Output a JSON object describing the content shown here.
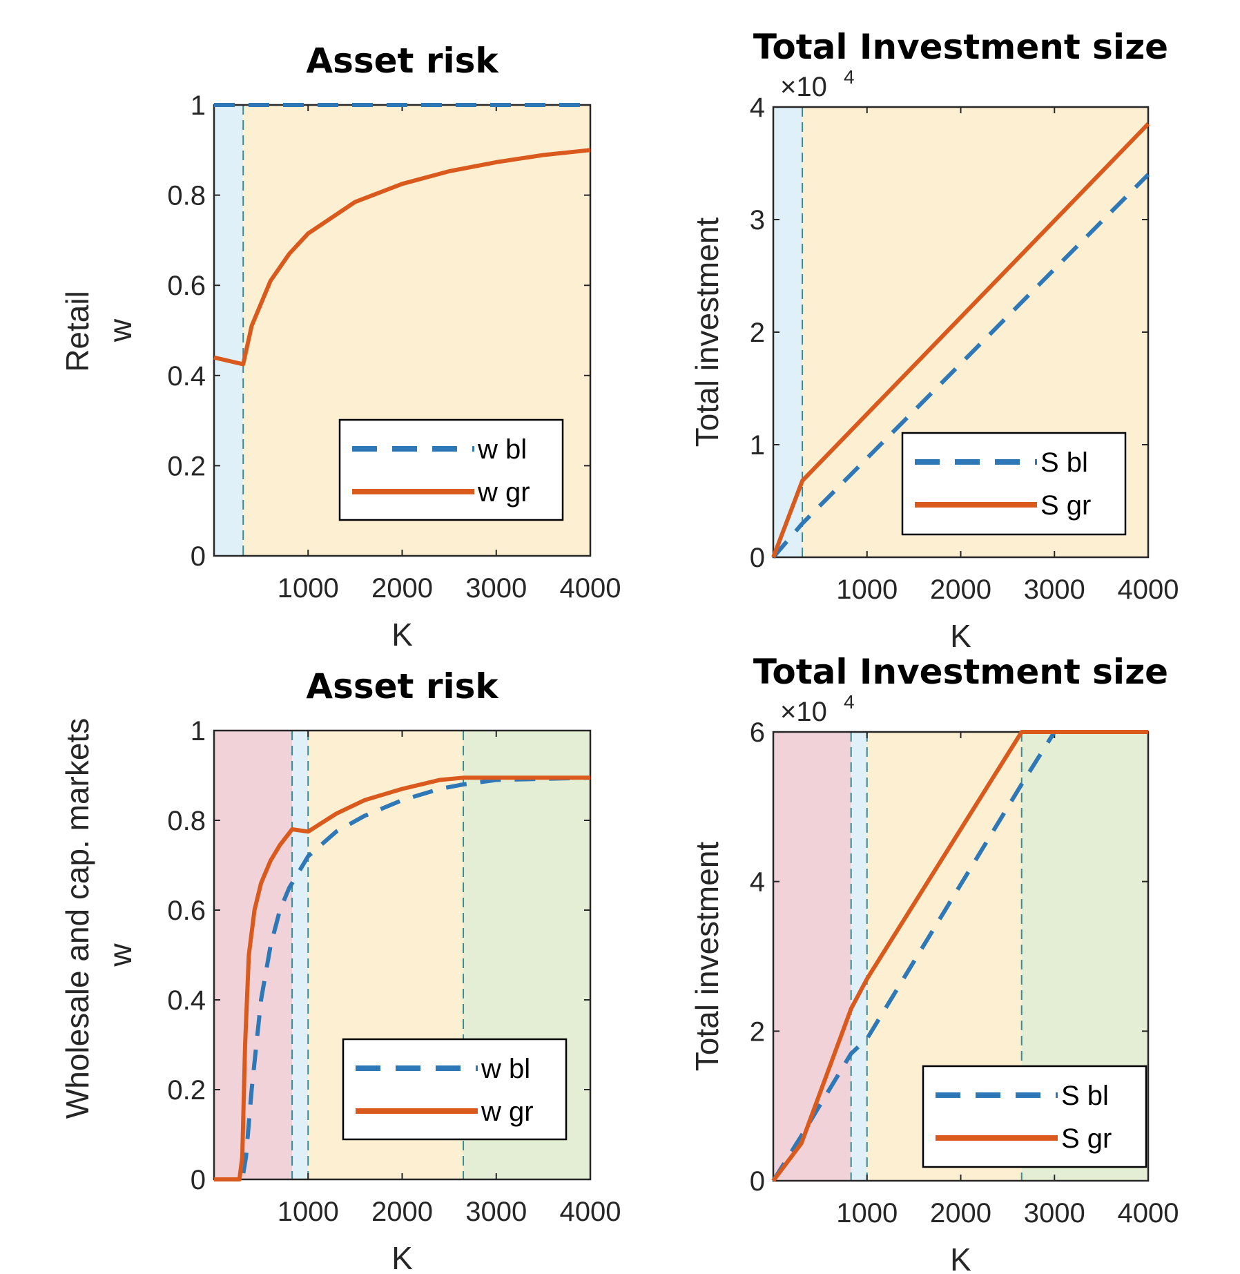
{
  "row_labels": [
    "Retail",
    "Wholesale and cap. markets"
  ],
  "chart_data": [
    {
      "type": "line",
      "title": "Asset risk",
      "xlabel": "K",
      "ylabel": "w",
      "xlim": [
        0,
        4000
      ],
      "ylim": [
        0,
        1
      ],
      "xticks": [
        1000,
        2000,
        3000,
        4000
      ],
      "xtick_labels": [
        "1000",
        "2000",
        "3000",
        "4000"
      ],
      "yticks": [
        0,
        0.2,
        0.4,
        0.6,
        0.8,
        1
      ],
      "ytick_labels": [
        "0",
        "0.2",
        "0.4",
        "0.6",
        "0.8",
        "1"
      ],
      "exponent": "",
      "regions": [
        {
          "from": 0,
          "to": 310,
          "color": "#dff0f8"
        },
        {
          "from": 310,
          "to": 4000,
          "color": "#fcefd2"
        }
      ],
      "vlines": [
        310
      ],
      "series": [
        {
          "name": "w bl",
          "color": "#2e78b8",
          "style": "dashed",
          "x": [
            0,
            4000
          ],
          "y": [
            1,
            1
          ]
        },
        {
          "name": "w gr",
          "color": "#d95a1c",
          "style": "solid",
          "x": [
            0,
            310,
            400,
            600,
            800,
            1000,
            1500,
            2000,
            2500,
            3000,
            3500,
            4000
          ],
          "y": [
            0.44,
            0.425,
            0.51,
            0.61,
            0.67,
            0.715,
            0.785,
            0.825,
            0.853,
            0.873,
            0.889,
            0.9
          ]
        }
      ],
      "legend": {
        "position": "bottom-right",
        "entries": [
          "w bl",
          "w gr"
        ]
      }
    },
    {
      "type": "line",
      "title": "Total Investment size",
      "xlabel": "K",
      "ylabel": "Total investment",
      "xlim": [
        0,
        4000
      ],
      "ylim": [
        0,
        40000
      ],
      "xticks": [
        1000,
        2000,
        3000,
        4000
      ],
      "xtick_labels": [
        "1000",
        "2000",
        "3000",
        "4000"
      ],
      "yticks": [
        0,
        10000,
        20000,
        30000,
        40000
      ],
      "ytick_labels": [
        "0",
        "1",
        "2",
        "3",
        "4"
      ],
      "exponent": "4",
      "regions": [
        {
          "from": 0,
          "to": 310,
          "color": "#dff0f8"
        },
        {
          "from": 310,
          "to": 4000,
          "color": "#fcefd2"
        }
      ],
      "vlines": [
        310
      ],
      "series": [
        {
          "name": "S bl",
          "color": "#2e78b8",
          "style": "dashed",
          "x": [
            0,
            310,
            4000
          ],
          "y": [
            0,
            3000,
            34000
          ]
        },
        {
          "name": "S gr",
          "color": "#d95a1c",
          "style": "solid",
          "x": [
            0,
            310,
            4000
          ],
          "y": [
            0,
            6800,
            38500
          ]
        }
      ],
      "legend": {
        "position": "bottom-right",
        "entries": [
          "S bl",
          "S gr"
        ]
      }
    },
    {
      "type": "line",
      "title": "Asset risk",
      "xlabel": "K",
      "ylabel": "w",
      "xlim": [
        0,
        4000
      ],
      "ylim": [
        0,
        1
      ],
      "xticks": [
        1000,
        2000,
        3000,
        4000
      ],
      "xtick_labels": [
        "1000",
        "2000",
        "3000",
        "4000"
      ],
      "yticks": [
        0,
        0.2,
        0.4,
        0.6,
        0.8,
        1
      ],
      "ytick_labels": [
        "0",
        "0.2",
        "0.4",
        "0.6",
        "0.8",
        "1"
      ],
      "exponent": "",
      "regions": [
        {
          "from": 0,
          "to": 830,
          "color": "#f0d2d8"
        },
        {
          "from": 830,
          "to": 1000,
          "color": "#dff0f8"
        },
        {
          "from": 1000,
          "to": 2650,
          "color": "#fcefd2"
        },
        {
          "from": 2650,
          "to": 4000,
          "color": "#e4eed5"
        }
      ],
      "vlines": [
        830,
        1000,
        2650
      ],
      "series": [
        {
          "name": "w bl",
          "color": "#2e78b8",
          "style": "dashed",
          "x": [
            0,
            300,
            340,
            400,
            500,
            600,
            700,
            800,
            830,
            1000,
            1300,
            1600,
            2000,
            2400,
            2650,
            3000,
            4000
          ],
          "y": [
            0,
            0,
            0.05,
            0.2,
            0.4,
            0.52,
            0.6,
            0.65,
            0.66,
            0.72,
            0.775,
            0.81,
            0.845,
            0.87,
            0.88,
            0.89,
            0.895
          ]
        },
        {
          "name": "w gr",
          "color": "#d95a1c",
          "style": "solid",
          "x": [
            0,
            270,
            300,
            330,
            370,
            430,
            500,
            600,
            700,
            830,
            1000,
            1300,
            1600,
            2000,
            2400,
            2650,
            3000,
            4000
          ],
          "y": [
            0,
            0,
            0.05,
            0.3,
            0.5,
            0.6,
            0.66,
            0.71,
            0.745,
            0.78,
            0.775,
            0.815,
            0.845,
            0.87,
            0.89,
            0.895,
            0.895,
            0.895
          ]
        }
      ],
      "legend": {
        "position": "bottom-right",
        "entries": [
          "w bl",
          "w gr"
        ]
      }
    },
    {
      "type": "line",
      "title": "Total Investment size",
      "xlabel": "K",
      "ylabel": "Total investment",
      "xlim": [
        0,
        4000
      ],
      "ylim": [
        0,
        60000
      ],
      "xticks": [
        1000,
        2000,
        3000,
        4000
      ],
      "xtick_labels": [
        "1000",
        "2000",
        "3000",
        "4000"
      ],
      "yticks": [
        0,
        20000,
        40000,
        60000
      ],
      "ytick_labels": [
        "0",
        "2",
        "4",
        "6"
      ],
      "exponent": "4",
      "regions": [
        {
          "from": 0,
          "to": 830,
          "color": "#f0d2d8"
        },
        {
          "from": 830,
          "to": 1000,
          "color": "#dff0f8"
        },
        {
          "from": 1000,
          "to": 2650,
          "color": "#fcefd2"
        },
        {
          "from": 2650,
          "to": 4000,
          "color": "#e4eed5"
        }
      ],
      "vlines": [
        830,
        1000,
        2650
      ],
      "series": [
        {
          "name": "S bl",
          "color": "#2e78b8",
          "style": "dashed",
          "x": [
            0,
            300,
            830,
            1000,
            2650,
            3000,
            4000
          ],
          "y": [
            0,
            6000,
            17000,
            19000,
            53000,
            60000,
            60000
          ]
        },
        {
          "name": "S gr",
          "color": "#d95a1c",
          "style": "solid",
          "x": [
            0,
            300,
            830,
            1000,
            2650,
            4000
          ],
          "y": [
            0,
            5000,
            23000,
            27000,
            60000,
            60000
          ]
        }
      ],
      "legend": {
        "position": "bottom-right",
        "entries": [
          "S bl",
          "S gr"
        ]
      }
    }
  ]
}
